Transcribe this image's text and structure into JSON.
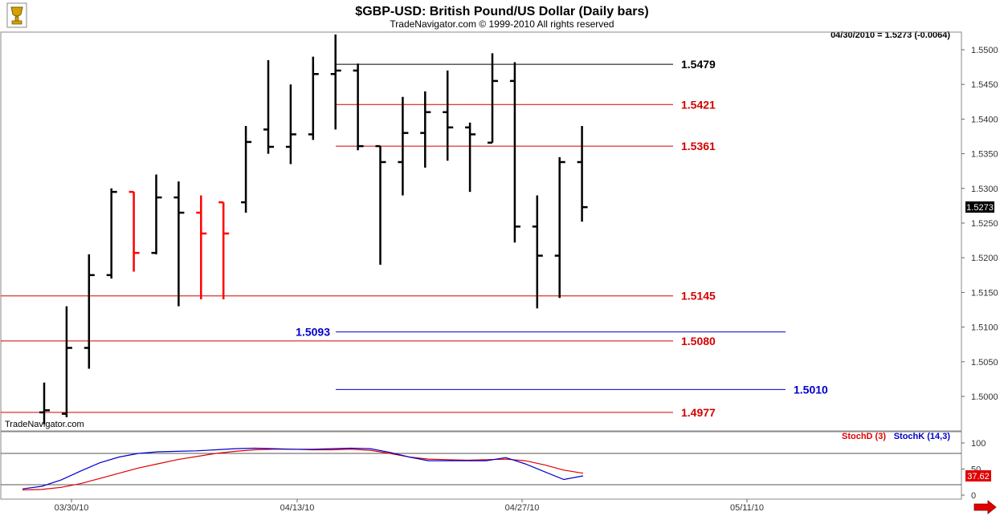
{
  "header": {
    "title": "$GBP-USD:  British Pound/US Dollar  (Daily bars)",
    "subtitle": "TradeNavigator.com © 1999-2010 All rights reserved",
    "last_info": "04/30/2010 = 1.5273 (-0.0064)",
    "watermark": "TradeNavigator.com"
  },
  "colors": {
    "bar_up": "#000000",
    "bar_down": "#ff0000",
    "red_level": "#d40000",
    "blue_level": "#0000cc",
    "black_level": "#000000",
    "stochD": "#e00000",
    "stochK": "#0000cc",
    "price_badge": "#000000",
    "stoch_badge": "#e00000"
  },
  "chart_data": [
    {
      "type": "ohlc",
      "title": "$GBP-USD:  British Pound/US Dollar  (Daily bars)",
      "ylim": [
        1.4955,
        1.5525
      ],
      "y_ticks": [
        "1.5500",
        "1.5450",
        "1.5400",
        "1.5350",
        "1.5300",
        "1.5250",
        "1.5200",
        "1.5150",
        "1.5100",
        "1.5050",
        "1.5000"
      ],
      "x_ticks": [
        "03/30/10",
        "04/13/10",
        "04/27/10",
        "05/11/10"
      ],
      "last_price_label": "1.5273",
      "bars": [
        {
          "date": "03/25/10",
          "open": 1.4977,
          "high": 1.502,
          "low": 1.496,
          "close": 1.498,
          "color": "black"
        },
        {
          "date": "03/26/10",
          "open": 1.4975,
          "high": 1.513,
          "low": 1.497,
          "close": 1.507,
          "color": "black"
        },
        {
          "date": "03/29/10",
          "open": 1.507,
          "high": 1.5205,
          "low": 1.504,
          "close": 1.5175,
          "color": "black"
        },
        {
          "date": "03/30/10",
          "open": 1.5175,
          "high": 1.53,
          "low": 1.517,
          "close": 1.5295,
          "color": "black"
        },
        {
          "date": "03/31/10",
          "open": 1.5295,
          "high": 1.5295,
          "low": 1.518,
          "close": 1.5207,
          "color": "red"
        },
        {
          "date": "04/01/10",
          "open": 1.5207,
          "high": 1.532,
          "low": 1.5205,
          "close": 1.5287,
          "color": "black"
        },
        {
          "date": "04/05/10",
          "open": 1.5287,
          "high": 1.531,
          "low": 1.513,
          "close": 1.5265,
          "color": "black"
        },
        {
          "date": "04/06/10",
          "open": 1.5265,
          "high": 1.529,
          "low": 1.514,
          "close": 1.5235,
          "color": "red"
        },
        {
          "date": "04/07/10",
          "open": 1.528,
          "high": 1.528,
          "low": 1.514,
          "close": 1.5235,
          "color": "red"
        },
        {
          "date": "04/08/10",
          "open": 1.528,
          "high": 1.539,
          "low": 1.5265,
          "close": 1.5367,
          "color": "black"
        },
        {
          "date": "04/09/10",
          "open": 1.5385,
          "high": 1.5485,
          "low": 1.535,
          "close": 1.536,
          "color": "black"
        },
        {
          "date": "04/12/10",
          "open": 1.536,
          "high": 1.545,
          "low": 1.5335,
          "close": 1.5378,
          "color": "black"
        },
        {
          "date": "04/13/10",
          "open": 1.5378,
          "high": 1.549,
          "low": 1.537,
          "close": 1.5465,
          "color": "black"
        },
        {
          "date": "04/14/10",
          "open": 1.5465,
          "high": 1.5522,
          "low": 1.5385,
          "close": 1.547,
          "color": "black"
        },
        {
          "date": "04/15/10",
          "open": 1.547,
          "high": 1.548,
          "low": 1.5355,
          "close": 1.5361,
          "color": "black"
        },
        {
          "date": "04/16/10",
          "open": 1.5361,
          "high": 1.5361,
          "low": 1.519,
          "close": 1.5338,
          "color": "black"
        },
        {
          "date": "04/19/10",
          "open": 1.5338,
          "high": 1.5432,
          "low": 1.529,
          "close": 1.538,
          "color": "black"
        },
        {
          "date": "04/20/10",
          "open": 1.538,
          "high": 1.544,
          "low": 1.533,
          "close": 1.541,
          "color": "black"
        },
        {
          "date": "04/21/10",
          "open": 1.541,
          "high": 1.547,
          "low": 1.534,
          "close": 1.5388,
          "color": "black"
        },
        {
          "date": "04/22/10",
          "open": 1.5388,
          "high": 1.5395,
          "low": 1.5295,
          "close": 1.5378,
          "color": "black"
        },
        {
          "date": "04/23/10",
          "open": 1.5366,
          "high": 1.5495,
          "low": 1.5366,
          "close": 1.5455,
          "color": "black"
        },
        {
          "date": "04/26/10",
          "open": 1.5455,
          "high": 1.5482,
          "low": 1.5222,
          "close": 1.5245,
          "color": "black"
        },
        {
          "date": "04/27/10",
          "open": 1.5245,
          "high": 1.529,
          "low": 1.5127,
          "close": 1.5203,
          "color": "black"
        },
        {
          "date": "04/28/10",
          "open": 1.5203,
          "high": 1.5345,
          "low": 1.5142,
          "close": 1.5338,
          "color": "black"
        },
        {
          "date": "04/29/10",
          "open": 1.5338,
          "high": 1.539,
          "low": 1.5252,
          "close": 1.5273,
          "color": "black"
        }
      ],
      "levels": [
        {
          "value": 1.5479,
          "label": "1.5479",
          "color": "black",
          "span": "right"
        },
        {
          "value": 1.5421,
          "label": "1.5421",
          "color": "red",
          "span": "right"
        },
        {
          "value": 1.5361,
          "label": "1.5361",
          "color": "red",
          "span": "right"
        },
        {
          "value": 1.5145,
          "label": "1.5145",
          "color": "red",
          "span": "full"
        },
        {
          "value": 1.5093,
          "label": "1.5093",
          "color": "blue",
          "span": "blue1"
        },
        {
          "value": 1.508,
          "label": "1.5080",
          "color": "red",
          "span": "full"
        },
        {
          "value": 1.501,
          "label": "1.5010",
          "color": "blue",
          "span": "blue2"
        },
        {
          "value": 1.4977,
          "label": "1.4977",
          "color": "red",
          "span": "full"
        }
      ]
    },
    {
      "type": "line",
      "ylim": [
        0,
        110
      ],
      "y_ticks": [
        "100",
        "50",
        "0"
      ],
      "reference_lines": [
        80,
        20
      ],
      "last_value_label": "37.62",
      "series": [
        {
          "name": "StochD (3)",
          "values": [
            10,
            11,
            15,
            22,
            32,
            42,
            52,
            60,
            68,
            74,
            80,
            84,
            87,
            88,
            88,
            87,
            87,
            88,
            86,
            80,
            73,
            69,
            68,
            67,
            68,
            69,
            66,
            58,
            48,
            42
          ]
        },
        {
          "name": "StochK (14,3)",
          "values": [
            12,
            17,
            29,
            46,
            62,
            73,
            80,
            83,
            84,
            85,
            87,
            89,
            90,
            89,
            88,
            88,
            89,
            90,
            89,
            82,
            73,
            66,
            66,
            66,
            66,
            72,
            60,
            45,
            30,
            37
          ]
        }
      ]
    }
  ]
}
